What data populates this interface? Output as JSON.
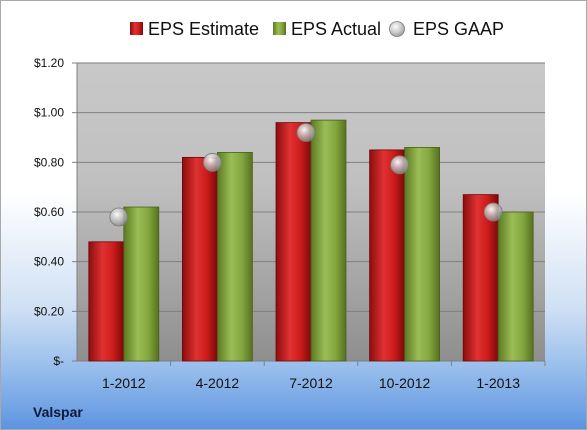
{
  "chart_data": {
    "type": "bar",
    "categories": [
      "1-2012",
      "4-2012",
      "7-2012",
      "10-2012",
      "1-2013"
    ],
    "series": [
      {
        "name": "EPS Estimate",
        "kind": "bar",
        "color": "#cc1b1b",
        "values": [
          0.48,
          0.82,
          0.96,
          0.85,
          0.67
        ]
      },
      {
        "name": "EPS Actual",
        "kind": "bar",
        "color": "#7f9f3a",
        "values": [
          0.62,
          0.84,
          0.97,
          0.86,
          0.6
        ]
      },
      {
        "name": "EPS GAAP",
        "kind": "marker",
        "color": "#c0c0c0",
        "values": [
          0.58,
          0.8,
          0.92,
          0.79,
          0.6
        ]
      }
    ],
    "ylim": [
      0,
      1.2
    ],
    "yticks": [
      0,
      0.2,
      0.4,
      0.6,
      0.8,
      1.0,
      1.2
    ],
    "ytick_labels": [
      "$-",
      "$0.20",
      "$0.40",
      "$0.60",
      "$0.80",
      "$1.00",
      "$1.20"
    ],
    "grid": true,
    "legend_position": "top"
  },
  "company": "Valspar"
}
